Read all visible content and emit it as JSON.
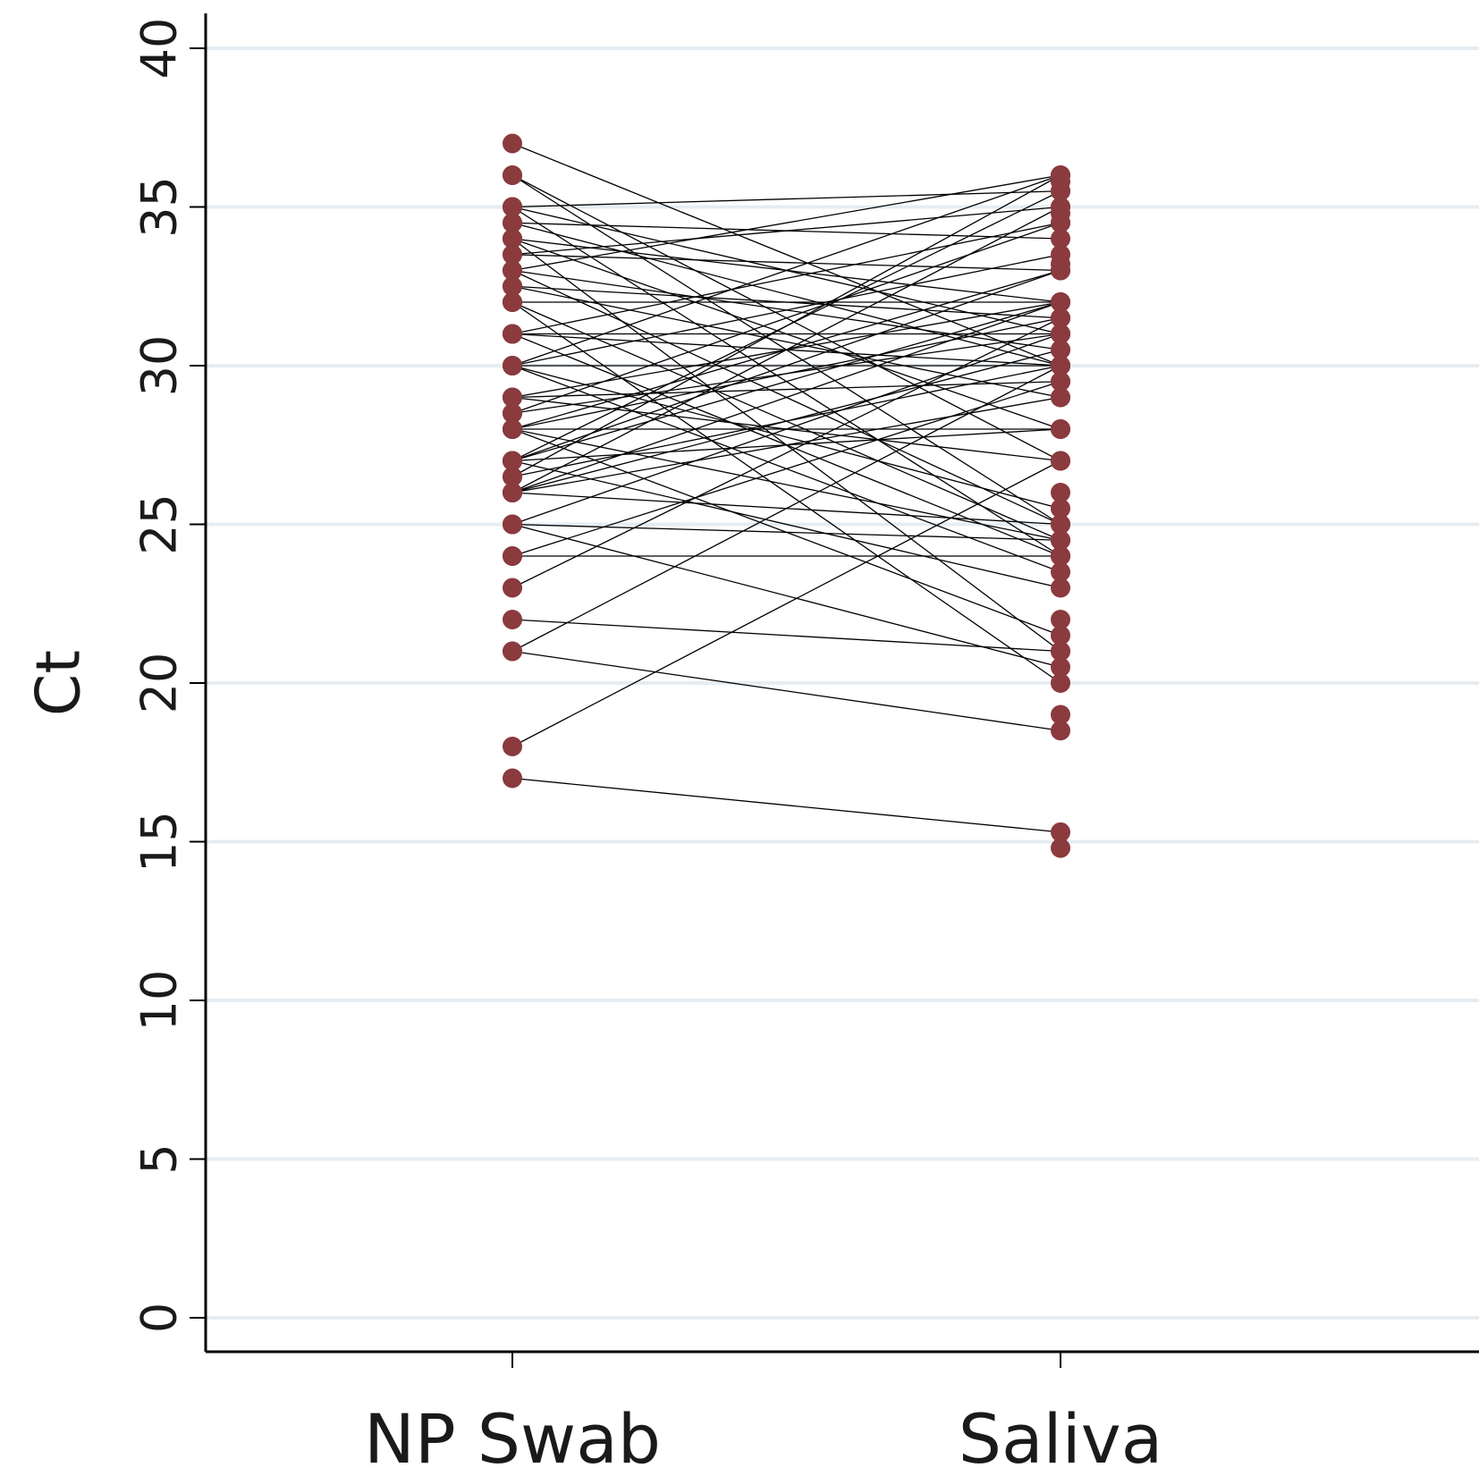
{
  "chart_data": {
    "type": "line",
    "subtype": "paired-dot",
    "ylabel": "Ct",
    "xlabel": "",
    "ylim": [
      0,
      40
    ],
    "yticks": [
      0,
      5,
      10,
      15,
      20,
      25,
      30,
      35,
      40
    ],
    "categories": [
      "NP Swab",
      "Saliva"
    ],
    "grid": "horizontal",
    "colors": {
      "point": "#8B3A3E",
      "line": "#000000",
      "grid": "#e6edf2"
    },
    "pairs": [
      [
        37,
        30
      ],
      [
        36,
        27
      ],
      [
        36,
        25
      ],
      [
        35,
        35.5
      ],
      [
        35,
        31
      ],
      [
        35,
        24
      ],
      [
        34.5,
        34
      ],
      [
        34.5,
        30
      ],
      [
        34,
        32
      ],
      [
        34,
        28
      ],
      [
        34,
        21
      ],
      [
        33.5,
        35
      ],
      [
        33.5,
        33
      ],
      [
        33,
        30.5
      ],
      [
        33,
        25
      ],
      [
        33,
        36
      ],
      [
        32.5,
        31.5
      ],
      [
        32.5,
        29
      ],
      [
        32,
        32
      ],
      [
        32,
        24.5
      ],
      [
        32,
        20
      ],
      [
        31,
        31
      ],
      [
        31,
        30
      ],
      [
        31,
        24
      ],
      [
        31,
        34.5
      ],
      [
        30,
        36
      ],
      [
        30,
        30
      ],
      [
        30,
        25.5
      ],
      [
        30,
        33.5
      ],
      [
        30,
        23.5
      ],
      [
        29,
        32
      ],
      [
        29,
        29.5
      ],
      [
        29,
        27
      ],
      [
        28.5,
        34.5
      ],
      [
        28.5,
        31
      ],
      [
        28,
        28
      ],
      [
        28,
        33
      ],
      [
        28,
        24.5
      ],
      [
        28,
        21.5
      ],
      [
        28,
        31.5
      ],
      [
        27,
        35.5
      ],
      [
        27,
        32
      ],
      [
        27,
        28
      ],
      [
        27,
        23
      ],
      [
        27,
        33
      ],
      [
        26.5,
        36
      ],
      [
        26.5,
        30
      ],
      [
        26,
        35
      ],
      [
        26,
        32
      ],
      [
        26,
        30.5
      ],
      [
        26,
        25
      ],
      [
        26,
        29
      ],
      [
        25,
        24.5
      ],
      [
        25,
        31
      ],
      [
        25,
        20.5
      ],
      [
        24,
        24
      ],
      [
        24,
        29.5
      ],
      [
        23,
        31.5
      ],
      [
        22,
        21
      ],
      [
        21,
        30
      ],
      [
        21,
        18.5
      ],
      [
        18,
        27
      ],
      [
        17,
        15.3
      ]
    ],
    "extra_saliva_points": [
      14.8,
      19,
      22,
      26,
      35.8,
      34.8,
      33.2
    ]
  }
}
